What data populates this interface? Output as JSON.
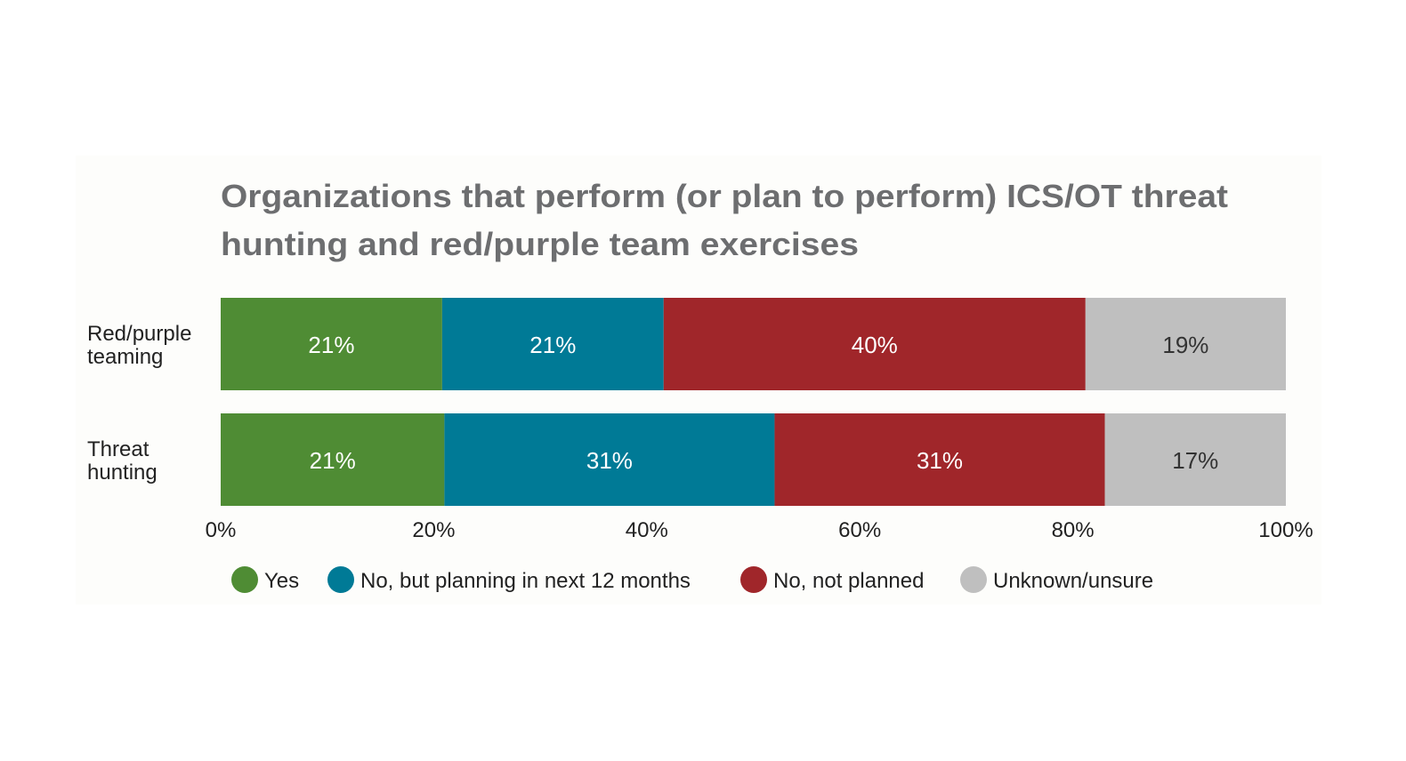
{
  "chart_data": {
    "type": "bar",
    "orientation": "horizontal",
    "stacked": true,
    "title_lines": [
      "Organizations that perform (or plan to perform) ICS/OT threat",
      "hunting and red/purple team exercises"
    ],
    "categories": [
      [
        "Red/purple",
        "teaming"
      ],
      [
        "Threat",
        "hunting"
      ]
    ],
    "series": [
      {
        "name": "Yes",
        "color": "#4f8c34",
        "values": [
          21,
          21
        ]
      },
      {
        "name": "No, but planning in next 12 months",
        "color": "#007a96",
        "values": [
          21,
          31
        ]
      },
      {
        "name": "No, not planned",
        "color": "#a0262a",
        "values": [
          40,
          31
        ]
      },
      {
        "name": "Unknown/unsure",
        "color": "#bfbfbf",
        "values": [
          19,
          17
        ]
      }
    ],
    "data_labels": [
      [
        "21%",
        "21%",
        "40%",
        "19%"
      ],
      [
        "21%",
        "31%",
        "31%",
        "17%"
      ]
    ],
    "x_ticks": [
      "0%",
      "20%",
      "40%",
      "60%",
      "80%",
      "100%"
    ],
    "xlim": [
      0,
      100
    ],
    "grid": false,
    "legend_position": "bottom",
    "title_color": "#6d6e70"
  }
}
